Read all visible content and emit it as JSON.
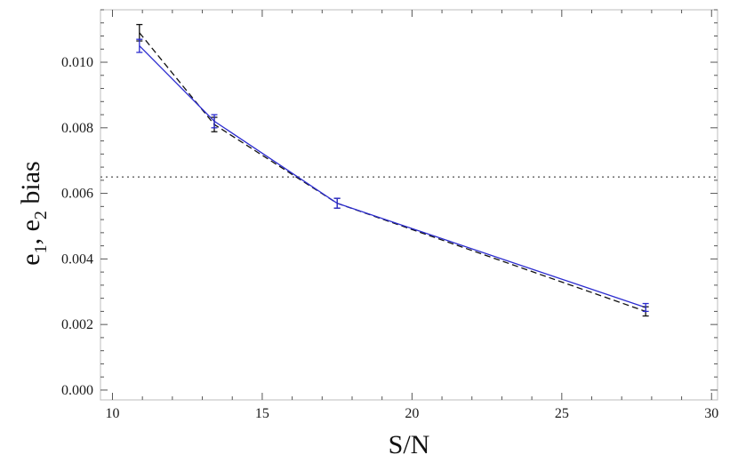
{
  "chart_data": {
    "type": "line",
    "xlabel": "S/N",
    "ylabel": {
      "base": "e",
      "sub1": "1",
      "mid": ", e",
      "sub2": "2",
      "tail": " bias"
    },
    "xlim": [
      9.6,
      30.2
    ],
    "ylim": [
      -0.0003,
      0.0116
    ],
    "xticks": [
      10,
      15,
      20,
      25,
      30
    ],
    "xtick_labels": [
      "10",
      "15",
      "20",
      "25",
      "30"
    ],
    "yticks": [
      0.0,
      0.002,
      0.004,
      0.006,
      0.008,
      0.01
    ],
    "ytick_labels": [
      "0.000",
      "0.002",
      "0.004",
      "0.006",
      "0.008",
      "0.010"
    ],
    "grid": false,
    "reference_line": {
      "y": 0.0065,
      "style": "dotted",
      "color": "#777777"
    },
    "series": [
      {
        "style": "solid",
        "color": "#2b2bcf",
        "errorbar_color": "#2b2bcf",
        "x": [
          10.9,
          13.4,
          17.5,
          27.8
        ],
        "y": [
          0.0105,
          0.0082,
          0.0057,
          0.00252
        ],
        "err": [
          0.0002,
          0.0002,
          0.00015,
          0.00012
        ]
      },
      {
        "style": "dashed",
        "color": "#111111",
        "errorbar_color": "#111111",
        "x": [
          10.9,
          13.4,
          17.5,
          27.8
        ],
        "y": [
          0.0109,
          0.0081,
          0.0057,
          0.0024
        ],
        "err": [
          0.00025,
          0.00022,
          0.00015,
          0.00014
        ]
      }
    ]
  }
}
